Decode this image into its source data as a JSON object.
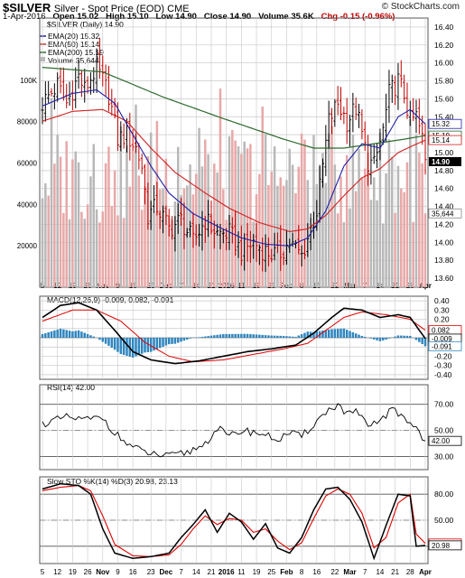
{
  "header": {
    "ticker": "$SILVER",
    "description": "Silver - Spot Price (EOD) CME",
    "brand": "© StockCharts.com",
    "date": "1-Apr-2016",
    "open": "Open 15.02",
    "high": "High 15.10",
    "low": "Low 14.90",
    "close": "Close 14.90",
    "volume": "Volume 35.6K",
    "change": "Chg -0.15 (-0.96%)"
  },
  "legend": {
    "main": "$SILVER (Daily) 14.90",
    "ema20": "EMA(20) 15.32",
    "ema50": "EMA(50) 15.14",
    "ema200": "EMA(200) 15.19",
    "volume": "Volume 35,644"
  },
  "colors": {
    "grid": "#c8c8c8",
    "price_bar": "#000000",
    "ema20": "#1f1fa8",
    "ema50": "#d02020",
    "ema200": "#2f6a2f",
    "vol_up": "#b8b8b8",
    "vol_down": "#e8a8a8",
    "macd_line": "#000000",
    "macd_signal": "#e00000",
    "macd_hist": "#2f86c0",
    "rsi": "#000000",
    "rsi_over": "#3a7a3a",
    "rsi_under": "#b04040",
    "sto_k": "#000000",
    "sto_d": "#e00000",
    "last_tag": "#1a1a8a"
  },
  "x_axis": {
    "labels": [
      "5",
      "12",
      "19",
      "26",
      "Nov",
      "9",
      "16",
      "23",
      "Dec",
      "7",
      "14",
      "21",
      "2016",
      "11",
      "19",
      "25",
      "Feb",
      "8",
      "16",
      "22",
      "Mar",
      "7",
      "14",
      "21",
      "28",
      "Apr"
    ]
  },
  "chart_data": [
    {
      "type": "ohlc",
      "title": "$SILVER (Daily) 14.90",
      "ylim": [
        13.5,
        16.5
      ],
      "y_ticks": [
        13.6,
        13.8,
        14.0,
        14.2,
        14.4,
        14.6,
        14.8,
        15.0,
        15.2,
        15.4,
        15.6,
        15.8,
        16.0,
        16.2,
        16.4
      ],
      "price_anchors": [
        [
          0,
          15.55
        ],
        [
          5,
          15.75
        ],
        [
          8,
          15.55
        ],
        [
          12,
          15.85
        ],
        [
          14,
          15.7
        ],
        [
          18,
          15.95
        ],
        [
          22,
          15.65
        ],
        [
          25,
          15.15
        ],
        [
          28,
          15.2
        ],
        [
          31,
          15.05
        ],
        [
          33,
          14.85
        ],
        [
          35,
          14.3
        ],
        [
          38,
          14.4
        ],
        [
          42,
          14.15
        ],
        [
          46,
          14.25
        ],
        [
          50,
          14.0
        ],
        [
          54,
          14.25
        ],
        [
          58,
          14.1
        ],
        [
          62,
          14.1
        ],
        [
          66,
          13.9
        ],
        [
          70,
          14.0
        ],
        [
          74,
          13.9
        ],
        [
          78,
          13.85
        ],
        [
          82,
          14.0
        ],
        [
          86,
          13.85
        ],
        [
          89,
          14.15
        ],
        [
          91,
          14.35
        ],
        [
          93,
          14.85
        ],
        [
          95,
          15.35
        ],
        [
          98,
          15.55
        ],
        [
          101,
          15.35
        ],
        [
          104,
          15.5
        ],
        [
          106,
          15.2
        ],
        [
          108,
          14.9
        ],
        [
          110,
          14.85
        ],
        [
          113,
          15.25
        ],
        [
          115,
          15.65
        ],
        [
          118,
          15.8
        ],
        [
          120,
          15.65
        ],
        [
          122,
          15.35
        ],
        [
          124,
          15.4
        ],
        [
          126,
          15.15
        ],
        [
          127,
          14.9
        ]
      ],
      "series": [
        {
          "name": "EMA(20)",
          "last": 15.32,
          "anchors": [
            [
              0,
              15.52
            ],
            [
              10,
              15.66
            ],
            [
              18,
              15.7
            ],
            [
              24,
              15.55
            ],
            [
              30,
              15.2
            ],
            [
              36,
              14.85
            ],
            [
              42,
              14.55
            ],
            [
              50,
              14.32
            ],
            [
              58,
              14.18
            ],
            [
              66,
              14.05
            ],
            [
              74,
              13.98
            ],
            [
              82,
              13.96
            ],
            [
              88,
              14.05
            ],
            [
              94,
              14.35
            ],
            [
              100,
              14.85
            ],
            [
              106,
              15.1
            ],
            [
              112,
              15.05
            ],
            [
              118,
              15.4
            ],
            [
              122,
              15.48
            ],
            [
              127,
              15.32
            ]
          ]
        },
        {
          "name": "EMA(50)",
          "last": 15.14,
          "anchors": [
            [
              0,
              15.35
            ],
            [
              10,
              15.46
            ],
            [
              20,
              15.48
            ],
            [
              28,
              15.35
            ],
            [
              36,
              15.05
            ],
            [
              44,
              14.78
            ],
            [
              54,
              14.55
            ],
            [
              62,
              14.38
            ],
            [
              72,
              14.22
            ],
            [
              82,
              14.12
            ],
            [
              88,
              14.15
            ],
            [
              94,
              14.3
            ],
            [
              100,
              14.52
            ],
            [
              106,
              14.72
            ],
            [
              112,
              14.82
            ],
            [
              118,
              15.0
            ],
            [
              123,
              15.08
            ],
            [
              127,
              15.14
            ]
          ]
        },
        {
          "name": "EMA(200)",
          "last": 15.19,
          "anchors": [
            [
              0,
              15.95
            ],
            [
              20,
              15.9
            ],
            [
              40,
              15.62
            ],
            [
              60,
              15.38
            ],
            [
              80,
              15.15
            ],
            [
              90,
              15.05
            ],
            [
              100,
              15.05
            ],
            [
              110,
              15.1
            ],
            [
              120,
              15.15
            ],
            [
              127,
              15.19
            ]
          ]
        },
        {
          "name": "Volume",
          "last": 35644,
          "ylim": [
            0,
            130000
          ],
          "y_ticks": [
            20000,
            40000,
            60000,
            80000,
            100000
          ]
        }
      ],
      "last_tags": [
        "15.32",
        "15.19",
        "15.14",
        "14.90",
        "35,644"
      ]
    },
    {
      "type": "line",
      "title": "MACD(12,26,9) -0.009, 0.082, -0.091",
      "ylim": [
        -0.45,
        0.45
      ],
      "y_ticks": [
        -0.4,
        -0.3,
        -0.2,
        -0.1,
        0.1,
        0.2,
        0.3,
        0.4
      ],
      "series": [
        {
          "name": "MACD",
          "last": -0.009,
          "anchors": [
            [
              0,
              0.22
            ],
            [
              6,
              0.35
            ],
            [
              12,
              0.38
            ],
            [
              18,
              0.3
            ],
            [
              24,
              0.08
            ],
            [
              30,
              -0.15
            ],
            [
              36,
              -0.24
            ],
            [
              44,
              -0.28
            ],
            [
              52,
              -0.25
            ],
            [
              60,
              -0.2
            ],
            [
              68,
              -0.15
            ],
            [
              76,
              -0.12
            ],
            [
              84,
              -0.08
            ],
            [
              90,
              0.05
            ],
            [
              96,
              0.22
            ],
            [
              100,
              0.32
            ],
            [
              106,
              0.3
            ],
            [
              112,
              0.22
            ],
            [
              118,
              0.25
            ],
            [
              122,
              0.22
            ],
            [
              127,
              -0.009
            ]
          ]
        },
        {
          "name": "Signal",
          "last": 0.082,
          "anchors": [
            [
              0,
              0.18
            ],
            [
              10,
              0.3
            ],
            [
              18,
              0.3
            ],
            [
              26,
              0.18
            ],
            [
              34,
              -0.05
            ],
            [
              42,
              -0.2
            ],
            [
              50,
              -0.26
            ],
            [
              60,
              -0.24
            ],
            [
              70,
              -0.18
            ],
            [
              80,
              -0.12
            ],
            [
              88,
              -0.06
            ],
            [
              94,
              0.08
            ],
            [
              100,
              0.22
            ],
            [
              106,
              0.28
            ],
            [
              114,
              0.25
            ],
            [
              122,
              0.2
            ],
            [
              127,
              0.082
            ]
          ]
        },
        {
          "name": "Histogram",
          "last": -0.091
        }
      ],
      "last_tags": [
        "0.082",
        "-0.009",
        "-0.091"
      ]
    },
    {
      "type": "line",
      "title": "RSI(14) 42.00",
      "ylim": [
        20,
        85
      ],
      "y_ticks": [
        30,
        50,
        70
      ],
      "series": [
        {
          "name": "RSI(14)",
          "last": 42.0,
          "anchors": [
            [
              0,
              55
            ],
            [
              8,
              60
            ],
            [
              14,
              58
            ],
            [
              20,
              60
            ],
            [
              24,
              48
            ],
            [
              28,
              40
            ],
            [
              32,
              35
            ],
            [
              36,
              32
            ],
            [
              42,
              30
            ],
            [
              48,
              33
            ],
            [
              54,
              40
            ],
            [
              58,
              52
            ],
            [
              62,
              45
            ],
            [
              66,
              50
            ],
            [
              72,
              48
            ],
            [
              78,
              43
            ],
            [
              82,
              48
            ],
            [
              86,
              45
            ],
            [
              90,
              55
            ],
            [
              94,
              64
            ],
            [
              98,
              70
            ],
            [
              101,
              62
            ],
            [
              104,
              65
            ],
            [
              108,
              52
            ],
            [
              112,
              58
            ],
            [
              116,
              66
            ],
            [
              120,
              60
            ],
            [
              124,
              52
            ],
            [
              127,
              42
            ]
          ]
        }
      ],
      "last_tags": [
        "42.00"
      ]
    },
    {
      "type": "line",
      "title": "Slow STO %K(14) %D(3) 20.98, 23.13",
      "ylim": [
        0,
        100
      ],
      "y_ticks": [
        20,
        50,
        80
      ],
      "series": [
        {
          "name": "%K(14)",
          "last": 20.98,
          "anchors": [
            [
              0,
              86
            ],
            [
              6,
              92
            ],
            [
              12,
              90
            ],
            [
              16,
              80
            ],
            [
              20,
              40
            ],
            [
              24,
              12
            ],
            [
              30,
              6
            ],
            [
              36,
              8
            ],
            [
              42,
              12
            ],
            [
              46,
              30
            ],
            [
              50,
              45
            ],
            [
              54,
              62
            ],
            [
              58,
              36
            ],
            [
              62,
              58
            ],
            [
              66,
              48
            ],
            [
              70,
              28
            ],
            [
              74,
              46
            ],
            [
              78,
              18
            ],
            [
              82,
              12
            ],
            [
              86,
              30
            ],
            [
              90,
              62
            ],
            [
              94,
              86
            ],
            [
              98,
              88
            ],
            [
              102,
              74
            ],
            [
              106,
              48
            ],
            [
              110,
              6
            ],
            [
              114,
              44
            ],
            [
              118,
              80
            ],
            [
              122,
              78
            ],
            [
              124,
              20
            ],
            [
              127,
              20.98
            ]
          ]
        },
        {
          "name": "%D(3)",
          "last": 23.13,
          "anchors": [
            [
              0,
              84
            ],
            [
              6,
              88
            ],
            [
              12,
              90
            ],
            [
              16,
              84
            ],
            [
              20,
              55
            ],
            [
              24,
              22
            ],
            [
              30,
              9
            ],
            [
              36,
              8
            ],
            [
              42,
              10
            ],
            [
              46,
              22
            ],
            [
              50,
              40
            ],
            [
              54,
              55
            ],
            [
              58,
              45
            ],
            [
              62,
              52
            ],
            [
              66,
              50
            ],
            [
              70,
              36
            ],
            [
              74,
              40
            ],
            [
              78,
              26
            ],
            [
              82,
              16
            ],
            [
              86,
              24
            ],
            [
              90,
              52
            ],
            [
              94,
              78
            ],
            [
              98,
              86
            ],
            [
              102,
              80
            ],
            [
              106,
              58
            ],
            [
              110,
              18
            ],
            [
              114,
              30
            ],
            [
              118,
              70
            ],
            [
              122,
              80
            ],
            [
              124,
              34
            ],
            [
              127,
              23.13
            ]
          ]
        }
      ],
      "last_tags": [
        "23.13",
        "20.98"
      ]
    }
  ]
}
